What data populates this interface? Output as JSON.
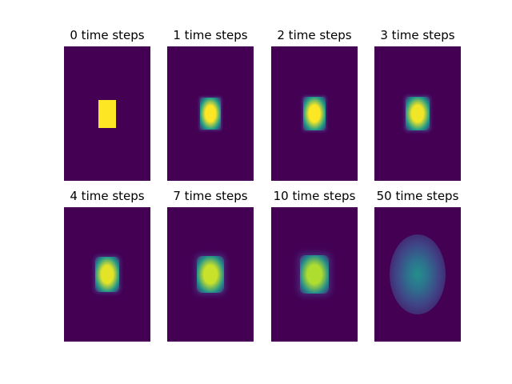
{
  "chart_data": {
    "type": "heatmap",
    "colormap": "viridis",
    "background_color": "#440154",
    "peak_color": "#fde725",
    "panels": [
      {
        "title": "0 time steps",
        "time_steps": 0,
        "peak": 1.0
      },
      {
        "title": "1 time steps",
        "time_steps": 1,
        "peak": 1.0
      },
      {
        "title": "2 time steps",
        "time_steps": 2,
        "peak": 1.0
      },
      {
        "title": "3 time steps",
        "time_steps": 3,
        "peak": 0.98
      },
      {
        "title": "4 time steps",
        "time_steps": 4,
        "peak": 0.96
      },
      {
        "title": "7 time steps",
        "time_steps": 7,
        "peak": 0.92
      },
      {
        "title": "10 time steps",
        "time_steps": 10,
        "peak": 0.88
      },
      {
        "title": "50 time steps",
        "time_steps": 50,
        "peak": 0.5
      }
    ]
  }
}
